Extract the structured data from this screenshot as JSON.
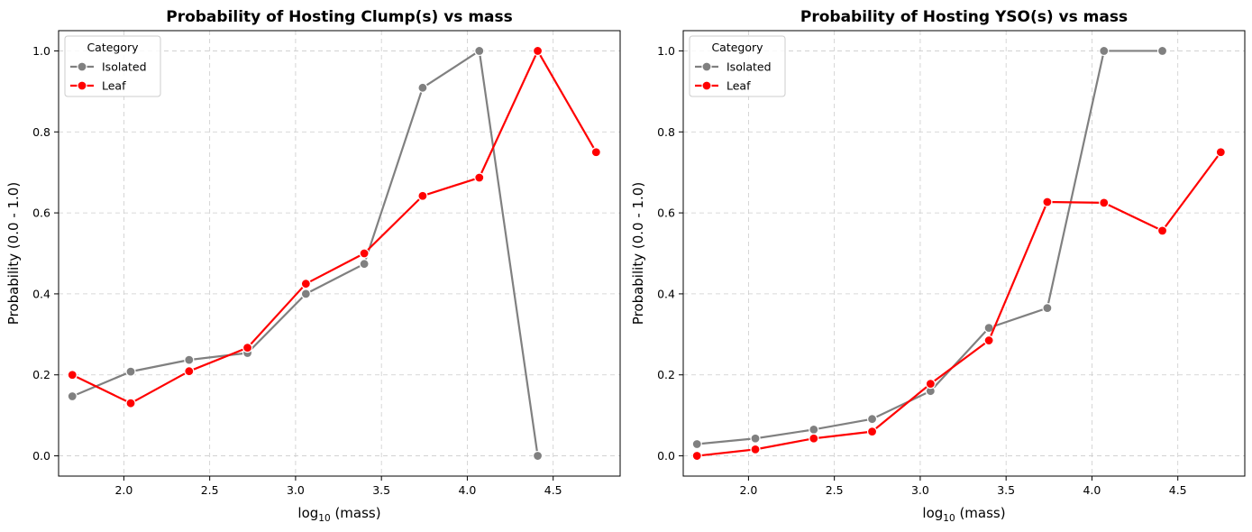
{
  "chart_data": [
    {
      "type": "line",
      "title": "Probability of Hosting Clump(s) vs mass",
      "xlabel": "log10 (mass)",
      "ylabel": "Probability (0.0 - 1.0)",
      "xlim": [
        1.62,
        4.89
      ],
      "ylim": [
        -0.05,
        1.05
      ],
      "xticks": [
        "2.0",
        "2.5",
        "3.0",
        "3.5",
        "4.0",
        "4.5"
      ],
      "yticks": [
        "0.0",
        "0.2",
        "0.4",
        "0.6",
        "0.8",
        "1.0"
      ],
      "grid": true,
      "legend": {
        "title": "Category",
        "placement": "top-left"
      },
      "series": [
        {
          "name": "Isolated",
          "color": "#808080",
          "x": [
            1.7,
            2.04,
            2.38,
            2.72,
            3.06,
            3.4,
            3.74,
            4.07,
            4.41
          ],
          "y": [
            0.147,
            0.208,
            0.237,
            0.254,
            0.4,
            0.474,
            0.909,
            1.0,
            0.0
          ]
        },
        {
          "name": "Leaf",
          "color": "#ff0000",
          "x": [
            1.7,
            2.04,
            2.38,
            2.72,
            3.06,
            3.4,
            3.74,
            4.07,
            4.41,
            4.75
          ],
          "y": [
            0.2,
            0.13,
            0.209,
            0.267,
            0.425,
            0.5,
            0.642,
            0.687,
            1.0,
            0.75
          ]
        }
      ]
    },
    {
      "type": "line",
      "title": "Probability of Hosting YSO(s) vs mass",
      "xlabel": "log10 (mass)",
      "ylabel": "Probability (0.0 - 1.0)",
      "xlim": [
        1.62,
        4.89
      ],
      "ylim": [
        -0.05,
        1.05
      ],
      "xticks": [
        "2.0",
        "2.5",
        "3.0",
        "3.5",
        "4.0",
        "4.5"
      ],
      "yticks": [
        "0.0",
        "0.2",
        "0.4",
        "0.6",
        "0.8",
        "1.0"
      ],
      "grid": true,
      "legend": {
        "title": "Category",
        "placement": "top-left"
      },
      "series": [
        {
          "name": "Isolated",
          "color": "#808080",
          "x": [
            1.7,
            2.04,
            2.38,
            2.72,
            3.06,
            3.4,
            3.74,
            4.07,
            4.41
          ],
          "y": [
            0.029,
            0.043,
            0.065,
            0.091,
            0.16,
            0.316,
            0.365,
            1.0,
            1.0
          ]
        },
        {
          "name": "Leaf",
          "color": "#ff0000",
          "x": [
            1.7,
            2.04,
            2.38,
            2.72,
            3.06,
            3.4,
            3.74,
            4.07,
            4.41,
            4.75
          ],
          "y": [
            0.0,
            0.016,
            0.043,
            0.06,
            0.178,
            0.285,
            0.627,
            0.625,
            0.556,
            0.75
          ]
        }
      ]
    }
  ]
}
